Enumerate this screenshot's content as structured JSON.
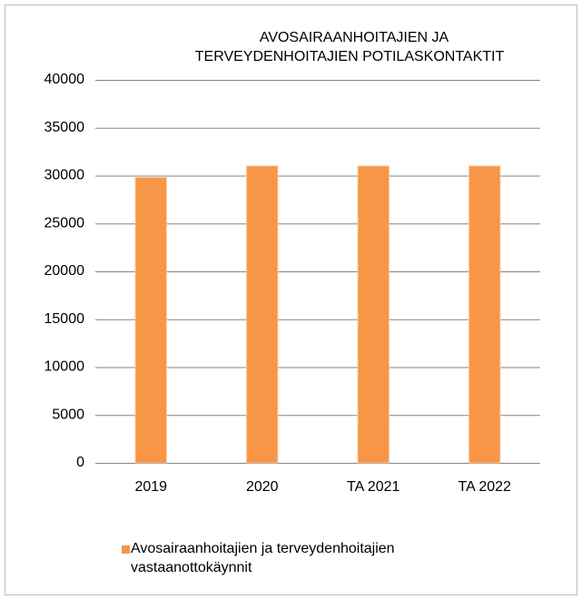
{
  "chart_data": {
    "type": "bar",
    "title": [
      "AVOSAIRAANHOITAJIEN JA",
      "TERVEYDENHOITAJIEN POTILASKONTAKTIT"
    ],
    "categories": [
      "2019",
      "2020",
      "TA 2021",
      "TA 2022"
    ],
    "series": [
      {
        "name": "Avosairaanhoitajien ja terveydenhoitajien vastaanottokäynnit",
        "color": "#f79646",
        "values": [
          29800,
          31000,
          31000,
          31000
        ]
      }
    ],
    "ylim": [
      0,
      40000
    ],
    "yticks": [
      0,
      5000,
      10000,
      15000,
      20000,
      25000,
      30000,
      35000,
      40000
    ],
    "grid": true,
    "legend": "bottom"
  }
}
